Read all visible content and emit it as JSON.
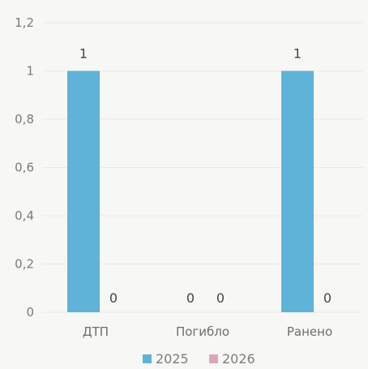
{
  "chart_data": {
    "type": "bar",
    "categories": [
      "ДТП",
      "Погибло",
      "Ранено"
    ],
    "series": [
      {
        "name": "2025",
        "values": [
          1,
          0,
          1
        ],
        "color": "#5fb3d8"
      },
      {
        "name": "2026",
        "values": [
          0,
          0,
          0
        ],
        "color": "#d9a7bb"
      }
    ],
    "ylim": [
      0,
      1.2
    ],
    "yticks": [
      "0",
      "0,2",
      "0,4",
      "0,6",
      "0,8",
      "1",
      "1,2"
    ],
    "data_labels": [
      [
        "1",
        "0",
        "1"
      ],
      [
        "0",
        "0",
        "0"
      ]
    ],
    "legend": "bottom",
    "grid": true
  }
}
